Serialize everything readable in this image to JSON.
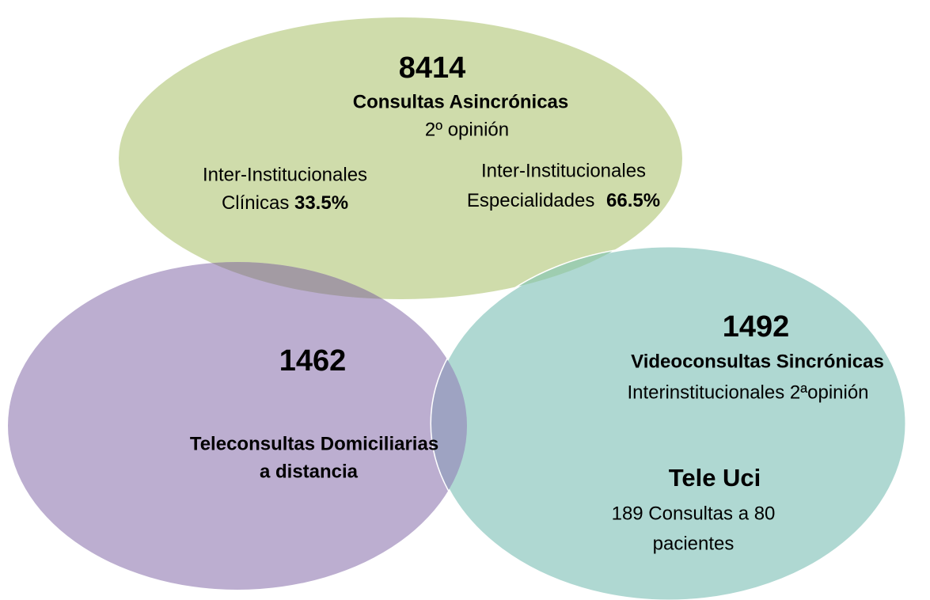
{
  "top": {
    "number": "8414",
    "title": "Consultas Asincrónicas",
    "subtitle": "2º  opinión",
    "left": {
      "line1": "Inter-Institucionales",
      "label": "Clínicas",
      "percent": "33.5%"
    },
    "right": {
      "line1": "Inter-Institucionales",
      "label": "Especialidades",
      "percent": "66.5%"
    }
  },
  "left": {
    "number": "1462",
    "title_line1": "Teleconsultas Domiciliarias",
    "title_line2": "a distancia"
  },
  "right": {
    "number": "1492",
    "title": "Videoconsultas Sincrónicas",
    "subtitle": "Interinstitucionales 2ªopinión",
    "section": "Tele Uci",
    "detail_line1": "189 Consultas a 80",
    "detail_line2": "pacientes"
  }
}
